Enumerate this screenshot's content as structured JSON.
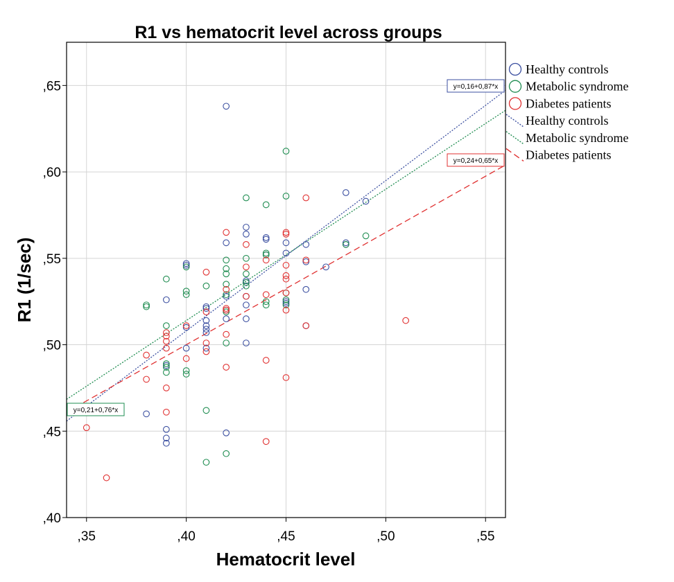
{
  "chart_data": {
    "type": "scatter",
    "title": "R1 vs hematocrit level across groups",
    "xlabel": "Hematocrit level",
    "ylabel": "R1 (1/sec)",
    "xlim": [
      0.34,
      0.56
    ],
    "ylim": [
      0.4,
      0.675
    ],
    "xticks": [
      0.35,
      0.4,
      0.45,
      0.5,
      0.55
    ],
    "yticks": [
      0.4,
      0.45,
      0.5,
      0.55,
      0.6,
      0.65
    ],
    "xtick_labels": [
      ",35",
      ",40",
      ",45",
      ",50",
      ",55"
    ],
    "ytick_labels": [
      ",40",
      ",45",
      ",50",
      ",55",
      ",60",
      ",65"
    ],
    "grid": true,
    "legend_position": "right",
    "series": [
      {
        "name": "Healthy controls",
        "color": "#3b4fa0",
        "fit": {
          "intercept": 0.16,
          "slope": 0.87,
          "label": "y=0,16+0,87*x",
          "line_style": "dotted"
        },
        "points": [
          {
            "x": 0.38,
            "y": 0.46
          },
          {
            "x": 0.39,
            "y": 0.451
          },
          {
            "x": 0.39,
            "y": 0.446
          },
          {
            "x": 0.39,
            "y": 0.443
          },
          {
            "x": 0.39,
            "y": 0.488
          },
          {
            "x": 0.39,
            "y": 0.526
          },
          {
            "x": 0.4,
            "y": 0.498
          },
          {
            "x": 0.4,
            "y": 0.51
          },
          {
            "x": 0.4,
            "y": 0.546
          },
          {
            "x": 0.4,
            "y": 0.547
          },
          {
            "x": 0.41,
            "y": 0.498
          },
          {
            "x": 0.41,
            "y": 0.507
          },
          {
            "x": 0.41,
            "y": 0.509
          },
          {
            "x": 0.41,
            "y": 0.511
          },
          {
            "x": 0.41,
            "y": 0.514
          },
          {
            "x": 0.41,
            "y": 0.521
          },
          {
            "x": 0.41,
            "y": 0.522
          },
          {
            "x": 0.42,
            "y": 0.638
          },
          {
            "x": 0.42,
            "y": 0.559
          },
          {
            "x": 0.42,
            "y": 0.528
          },
          {
            "x": 0.42,
            "y": 0.52
          },
          {
            "x": 0.42,
            "y": 0.515
          },
          {
            "x": 0.42,
            "y": 0.449
          },
          {
            "x": 0.43,
            "y": 0.568
          },
          {
            "x": 0.43,
            "y": 0.564
          },
          {
            "x": 0.43,
            "y": 0.537
          },
          {
            "x": 0.43,
            "y": 0.536
          },
          {
            "x": 0.43,
            "y": 0.528
          },
          {
            "x": 0.43,
            "y": 0.523
          },
          {
            "x": 0.43,
            "y": 0.515
          },
          {
            "x": 0.43,
            "y": 0.501
          },
          {
            "x": 0.44,
            "y": 0.562
          },
          {
            "x": 0.44,
            "y": 0.561
          },
          {
            "x": 0.44,
            "y": 0.552
          },
          {
            "x": 0.45,
            "y": 0.559
          },
          {
            "x": 0.45,
            "y": 0.553
          },
          {
            "x": 0.45,
            "y": 0.525
          },
          {
            "x": 0.45,
            "y": 0.524
          },
          {
            "x": 0.46,
            "y": 0.558
          },
          {
            "x": 0.46,
            "y": 0.548
          },
          {
            "x": 0.46,
            "y": 0.532
          },
          {
            "x": 0.46,
            "y": 0.511
          },
          {
            "x": 0.47,
            "y": 0.545
          },
          {
            "x": 0.48,
            "y": 0.588
          },
          {
            "x": 0.48,
            "y": 0.559
          },
          {
            "x": 0.48,
            "y": 0.558
          },
          {
            "x": 0.49,
            "y": 0.583
          }
        ]
      },
      {
        "name": "Metabolic syndrome",
        "color": "#1e8c50",
        "fit": {
          "intercept": 0.21,
          "slope": 0.76,
          "label": "y=0,21+0,76*x",
          "line_style": "dotted"
        },
        "points": [
          {
            "x": 0.38,
            "y": 0.523
          },
          {
            "x": 0.38,
            "y": 0.522
          },
          {
            "x": 0.39,
            "y": 0.538
          },
          {
            "x": 0.39,
            "y": 0.511
          },
          {
            "x": 0.39,
            "y": 0.489
          },
          {
            "x": 0.39,
            "y": 0.487
          },
          {
            "x": 0.39,
            "y": 0.484
          },
          {
            "x": 0.4,
            "y": 0.531
          },
          {
            "x": 0.4,
            "y": 0.529
          },
          {
            "x": 0.4,
            "y": 0.485
          },
          {
            "x": 0.4,
            "y": 0.483
          },
          {
            "x": 0.4,
            "y": 0.545
          },
          {
            "x": 0.41,
            "y": 0.534
          },
          {
            "x": 0.41,
            "y": 0.462
          },
          {
            "x": 0.41,
            "y": 0.432
          },
          {
            "x": 0.42,
            "y": 0.549
          },
          {
            "x": 0.42,
            "y": 0.544
          },
          {
            "x": 0.42,
            "y": 0.541
          },
          {
            "x": 0.42,
            "y": 0.535
          },
          {
            "x": 0.42,
            "y": 0.529
          },
          {
            "x": 0.42,
            "y": 0.519
          },
          {
            "x": 0.42,
            "y": 0.501
          },
          {
            "x": 0.42,
            "y": 0.437
          },
          {
            "x": 0.43,
            "y": 0.585
          },
          {
            "x": 0.43,
            "y": 0.55
          },
          {
            "x": 0.43,
            "y": 0.541
          },
          {
            "x": 0.43,
            "y": 0.536
          },
          {
            "x": 0.43,
            "y": 0.534
          },
          {
            "x": 0.44,
            "y": 0.581
          },
          {
            "x": 0.44,
            "y": 0.553
          },
          {
            "x": 0.44,
            "y": 0.552
          },
          {
            "x": 0.44,
            "y": 0.525
          },
          {
            "x": 0.44,
            "y": 0.523
          },
          {
            "x": 0.45,
            "y": 0.612
          },
          {
            "x": 0.45,
            "y": 0.586
          },
          {
            "x": 0.45,
            "y": 0.53
          },
          {
            "x": 0.45,
            "y": 0.526
          },
          {
            "x": 0.45,
            "y": 0.523
          },
          {
            "x": 0.48,
            "y": 0.558
          },
          {
            "x": 0.49,
            "y": 0.563
          }
        ]
      },
      {
        "name": "Diabetes patients",
        "color": "#e03030",
        "fit": {
          "intercept": 0.24,
          "slope": 0.65,
          "label": "y=0,24+0,65*x",
          "line_style": "dashed"
        },
        "points": [
          {
            "x": 0.35,
            "y": 0.452
          },
          {
            "x": 0.36,
            "y": 0.423
          },
          {
            "x": 0.38,
            "y": 0.494
          },
          {
            "x": 0.38,
            "y": 0.48
          },
          {
            "x": 0.39,
            "y": 0.507
          },
          {
            "x": 0.39,
            "y": 0.505
          },
          {
            "x": 0.39,
            "y": 0.502
          },
          {
            "x": 0.39,
            "y": 0.498
          },
          {
            "x": 0.39,
            "y": 0.475
          },
          {
            "x": 0.39,
            "y": 0.461
          },
          {
            "x": 0.4,
            "y": 0.511
          },
          {
            "x": 0.4,
            "y": 0.492
          },
          {
            "x": 0.41,
            "y": 0.542
          },
          {
            "x": 0.41,
            "y": 0.519
          },
          {
            "x": 0.41,
            "y": 0.501
          },
          {
            "x": 0.41,
            "y": 0.496
          },
          {
            "x": 0.42,
            "y": 0.565
          },
          {
            "x": 0.42,
            "y": 0.532
          },
          {
            "x": 0.42,
            "y": 0.521
          },
          {
            "x": 0.42,
            "y": 0.52
          },
          {
            "x": 0.42,
            "y": 0.506
          },
          {
            "x": 0.42,
            "y": 0.487
          },
          {
            "x": 0.43,
            "y": 0.558
          },
          {
            "x": 0.43,
            "y": 0.545
          },
          {
            "x": 0.43,
            "y": 0.528
          },
          {
            "x": 0.44,
            "y": 0.549
          },
          {
            "x": 0.44,
            "y": 0.529
          },
          {
            "x": 0.44,
            "y": 0.491
          },
          {
            "x": 0.44,
            "y": 0.444
          },
          {
            "x": 0.45,
            "y": 0.565
          },
          {
            "x": 0.45,
            "y": 0.564
          },
          {
            "x": 0.45,
            "y": 0.546
          },
          {
            "x": 0.45,
            "y": 0.54
          },
          {
            "x": 0.45,
            "y": 0.538
          },
          {
            "x": 0.45,
            "y": 0.53
          },
          {
            "x": 0.45,
            "y": 0.52
          },
          {
            "x": 0.45,
            "y": 0.481
          },
          {
            "x": 0.46,
            "y": 0.585
          },
          {
            "x": 0.46,
            "y": 0.549
          },
          {
            "x": 0.46,
            "y": 0.511
          },
          {
            "x": 0.51,
            "y": 0.514
          }
        ]
      }
    ],
    "legend": {
      "markers": [
        "Healthy controls",
        "Metabolic syndrome",
        "Diabetes patients"
      ],
      "lines": [
        "Healthy controls",
        "Metabolic syndrome",
        "Diabetes patients"
      ]
    }
  }
}
